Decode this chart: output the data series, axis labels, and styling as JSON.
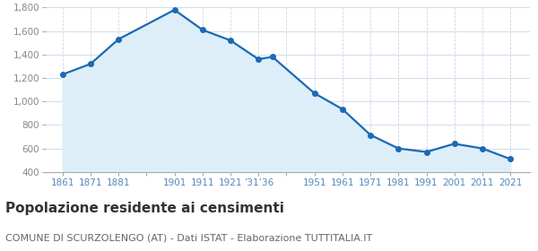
{
  "years": [
    1861,
    1871,
    1881,
    1901,
    1911,
    1921,
    1931,
    1936,
    1951,
    1961,
    1971,
    1981,
    1991,
    2001,
    2011,
    2021
  ],
  "population": [
    1230,
    1320,
    1530,
    1780,
    1610,
    1520,
    1360,
    1380,
    1070,
    935,
    715,
    600,
    570,
    640,
    600,
    510
  ],
  "line_color": "#1a6ab5",
  "fill_color": "#ddeef8",
  "marker_color": "#1a6ab5",
  "background_color": "#ffffff",
  "grid_color_h": "#c8d8e8",
  "grid_color_v": "#c8d8e8",
  "ylim": [
    400,
    1800
  ],
  "yticks": [
    400,
    600,
    800,
    1000,
    1200,
    1400,
    1600,
    1800
  ],
  "xlim_min": 1855,
  "xlim_max": 2028,
  "title": "Popolazione residente ai censimenti",
  "subtitle": "COMUNE DI SCURZOLENGO (AT) - Dati ISTAT - Elaborazione TUTTITALIA.IT",
  "title_fontsize": 11,
  "subtitle_fontsize": 8,
  "tick_label_color": "#5588bb",
  "ytick_label_color": "#888888"
}
